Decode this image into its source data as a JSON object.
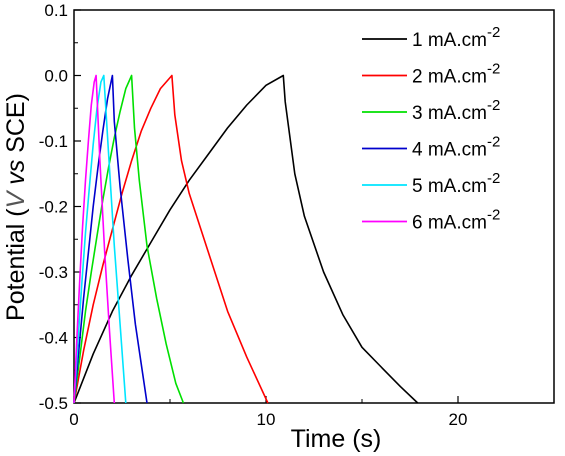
{
  "chart_data": {
    "type": "line",
    "xlabel": "Time (s)",
    "ylabel": {
      "prefix": "Potential (",
      "v": "V",
      "vs": " vs ",
      "suffix": "SCE)"
    },
    "xlim": [
      0,
      25
    ],
    "ylim": [
      -0.5,
      0.1
    ],
    "x_ticks": [
      0,
      10,
      20
    ],
    "x_tick_labels": [
      "0",
      "10",
      "20"
    ],
    "y_ticks": [
      0.1,
      0.0,
      -0.1,
      -0.2,
      -0.3,
      -0.4,
      -0.5
    ],
    "y_tick_labels": [
      "0.1",
      "0.0",
      "-0.1",
      "-0.2",
      "-0.3",
      "-0.4",
      "-0.5"
    ],
    "grid": false,
    "legend_position": "top-right",
    "series": [
      {
        "name": "1 mA.cm-2",
        "label_base": "1 mA.cm",
        "label_exp": "-2",
        "color": "#000000",
        "x": [
          0,
          1,
          2,
          3,
          4,
          5,
          6,
          7,
          8,
          9,
          10,
          10.9,
          11.0,
          11.5,
          12,
          13,
          14,
          15,
          16,
          17,
          17.9
        ],
        "y": [
          -0.5,
          -0.425,
          -0.36,
          -0.305,
          -0.255,
          -0.205,
          -0.16,
          -0.12,
          -0.08,
          -0.045,
          -0.015,
          0.0,
          -0.04,
          -0.15,
          -0.215,
          -0.3,
          -0.365,
          -0.415,
          -0.445,
          -0.475,
          -0.5
        ]
      },
      {
        "name": "2 mA.cm-2",
        "label_base": "2 mA.cm",
        "label_exp": "-2",
        "color": "#ff0000",
        "x": [
          0,
          0.5,
          1,
          1.5,
          2,
          2.5,
          3,
          3.5,
          4,
          4.5,
          5.1,
          5.25,
          5.6,
          6,
          7,
          8,
          9,
          10.1
        ],
        "y": [
          -0.5,
          -0.42,
          -0.35,
          -0.29,
          -0.235,
          -0.18,
          -0.13,
          -0.085,
          -0.05,
          -0.02,
          0.0,
          -0.06,
          -0.13,
          -0.18,
          -0.27,
          -0.36,
          -0.43,
          -0.5
        ]
      },
      {
        "name": "3 mA.cm-2",
        "label_base": "3 mA.cm",
        "label_exp": "-2",
        "color": "#00e000",
        "x": [
          0,
          0.3,
          0.6,
          0.9,
          1.2,
          1.5,
          1.8,
          2.1,
          2.4,
          2.7,
          3.0,
          3.15,
          3.4,
          3.8,
          4.3,
          4.8,
          5.3,
          5.7
        ],
        "y": [
          -0.5,
          -0.43,
          -0.36,
          -0.3,
          -0.245,
          -0.19,
          -0.14,
          -0.095,
          -0.055,
          -0.02,
          0.0,
          -0.08,
          -0.16,
          -0.26,
          -0.34,
          -0.41,
          -0.47,
          -0.5
        ]
      },
      {
        "name": "4 mA.cm-2",
        "label_base": "4 mA.cm",
        "label_exp": "-2",
        "color": "#0000cc",
        "x": [
          0,
          0.25,
          0.5,
          0.75,
          1.0,
          1.25,
          1.5,
          1.75,
          2.0,
          2.1,
          2.4,
          2.8,
          3.2,
          3.5,
          3.8
        ],
        "y": [
          -0.5,
          -0.42,
          -0.34,
          -0.27,
          -0.2,
          -0.14,
          -0.085,
          -0.035,
          0.0,
          -0.07,
          -0.17,
          -0.28,
          -0.38,
          -0.44,
          -0.5
        ]
      },
      {
        "name": "5 mA.cm-2",
        "label_base": "5 mA.cm",
        "label_exp": "-2",
        "color": "#00e5ff",
        "x": [
          0,
          0.2,
          0.4,
          0.6,
          0.8,
          1.0,
          1.2,
          1.4,
          1.55,
          1.8,
          2.1,
          2.4,
          2.7
        ],
        "y": [
          -0.5,
          -0.41,
          -0.32,
          -0.24,
          -0.17,
          -0.105,
          -0.05,
          -0.01,
          0.0,
          -0.12,
          -0.26,
          -0.38,
          -0.5
        ]
      },
      {
        "name": "6 mA.cm-2",
        "label_base": "6 mA.cm",
        "label_exp": "-2",
        "color": "#ff00ff",
        "x": [
          0,
          0.15,
          0.3,
          0.45,
          0.6,
          0.75,
          0.9,
          1.05,
          1.15,
          1.35,
          1.6,
          1.85,
          2.1
        ],
        "y": [
          -0.5,
          -0.4,
          -0.31,
          -0.23,
          -0.16,
          -0.1,
          -0.045,
          -0.01,
          0.0,
          -0.13,
          -0.27,
          -0.39,
          -0.5
        ]
      }
    ]
  }
}
